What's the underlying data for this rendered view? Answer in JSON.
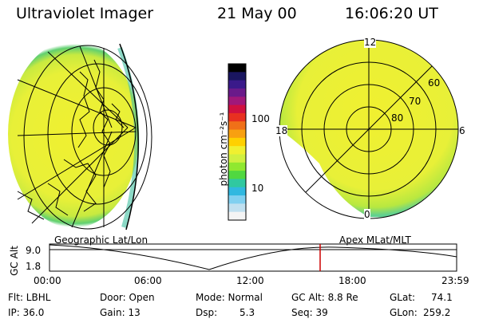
{
  "header": {
    "title": "Ultraviolet Imager",
    "date": "21 May 00",
    "time": "16:06:20 UT"
  },
  "colorbar": {
    "unit_label": "photon cm⁻²s⁻¹",
    "ticks": [
      "100",
      "10"
    ],
    "colors": [
      "#000000",
      "#1a1660",
      "#3a1a8a",
      "#6a1a8a",
      "#a0187a",
      "#d01040",
      "#e83020",
      "#f07018",
      "#f8a010",
      "#ffd000",
      "#f0f030",
      "#d0f040",
      "#90e830",
      "#50d840",
      "#30c8a0",
      "#30b8e0",
      "#80d0f0",
      "#c0e0f0",
      "#f4f4f4"
    ]
  },
  "maps": {
    "left_label": "Geographic Lat/Lon",
    "right_label": "Apex MLat/MLT",
    "polar_labels": [
      "12",
      "60",
      "70",
      "80",
      "18",
      "6",
      "0"
    ]
  },
  "timeline": {
    "axis_label": "GC Alt",
    "y_max": "9.0",
    "y_min": "1.8",
    "x_ticks": [
      "00:00",
      "06:00",
      "12:00",
      "18:00",
      "23:59"
    ],
    "current_time_marker_color": "#cc0000"
  },
  "status": {
    "flt": "Flt: LBHL",
    "door": "Door: Open",
    "mode": "Mode: Normal",
    "gc_alt": "GC Alt: 8.8 Re",
    "glat_label": "GLat:",
    "glat_value": "74.1",
    "ip": "IP: 36.0",
    "gain": "Gain: 13",
    "dsp_label": "Dsp:",
    "dsp_value": "5.3",
    "seq": "Seq: 39",
    "glon_label": "GLon:",
    "glon_value": "259.2"
  }
}
